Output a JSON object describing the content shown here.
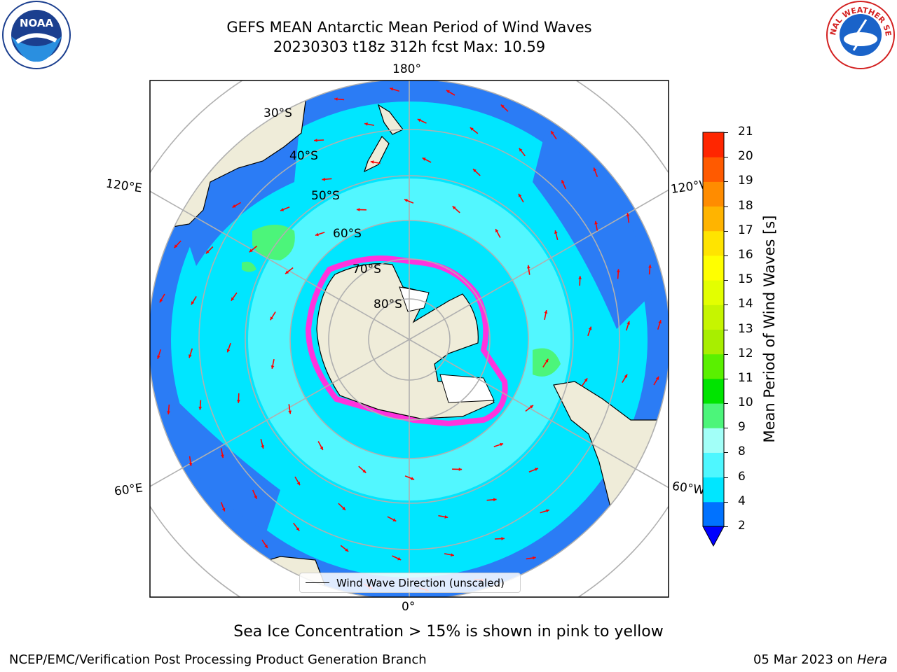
{
  "title": {
    "line1": "GEFS MEAN Antarctic Mean Period of Wind Waves",
    "line2": "20230303 t18z 312h fcst   Max: 10.59"
  },
  "map": {
    "longitude_labels": {
      "top": "180°",
      "bottom": "0°",
      "upper_left": "120°E",
      "upper_right": "120°W",
      "lower_left": "60°E",
      "lower_right": "60°W"
    },
    "latitude_labels": [
      "30°S",
      "40°S",
      "50°S",
      "60°S",
      "70°S",
      "80°S"
    ],
    "legend": "Wind Wave Direction (unscaled)",
    "colors": {
      "land": "#efecd9",
      "ocean_low": "#2b7cf5",
      "ocean_mid": "#00e6ff",
      "ocean_high": "#52f7ff",
      "swell_green": "#4cf57a",
      "sea_ice": "#ff33dd",
      "arrow": "#ff0000"
    }
  },
  "colorbar": {
    "label": "Mean Period of Wind Waves [s]",
    "ticks": [
      "2",
      "4",
      "6",
      "8",
      "9",
      "10",
      "11",
      "12",
      "13",
      "14",
      "15",
      "16",
      "17",
      "18",
      "19",
      "20",
      "21"
    ],
    "colors": [
      "#0072ff",
      "#00e6ff",
      "#4ef7ff",
      "#a2fff8",
      "#4cf57a",
      "#00e400",
      "#5af000",
      "#a8ee00",
      "#c6f500",
      "#e3ff00",
      "#ffff00",
      "#ffe400",
      "#ffb400",
      "#ff8c00",
      "#ff5a00",
      "#ff2600"
    ],
    "under_color": "#0000ff"
  },
  "caption": "Sea Ice Concentration > 15% is shown in pink to yellow",
  "footer": {
    "left": "NCEP/EMC/Verification Post Processing Product Generation Branch",
    "right_prefix": "05 Mar 2023 on ",
    "right_host": "Hera"
  },
  "logos": {
    "noaa_text": "NOAA",
    "nws_text": "NATIONAL WEATHER SERVICE"
  }
}
